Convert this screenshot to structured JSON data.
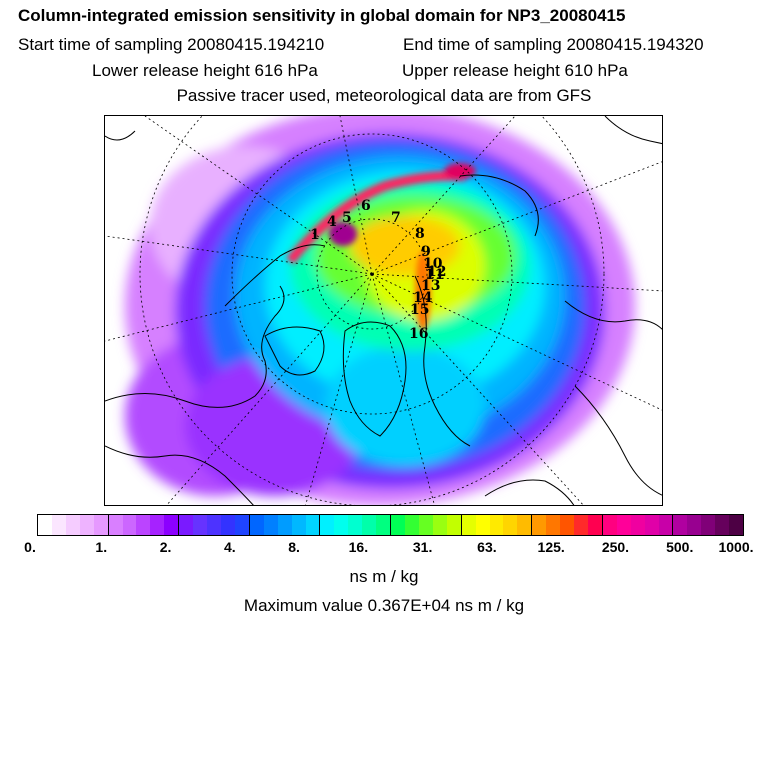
{
  "header": {
    "title": "Column-integrated emission sensitivity in global domain for NP3_20080415",
    "start_time": "Start time of sampling 20080415.194210",
    "end_time": "End time of sampling 20080415.194320",
    "lower_release": "Lower release height  616 hPa",
    "upper_release": "Upper release height  610 hPa",
    "tracer_note": "Passive tracer used, meteorological data are from GFS"
  },
  "colorbar": {
    "colors": [
      "#ffffff",
      "#fbe6ff",
      "#f5ccff",
      "#eeb3ff",
      "#e699ff",
      "#d97fff",
      "#cc66ff",
      "#bb44ff",
      "#a622ff",
      "#8c00ff",
      "#7a1aff",
      "#6633ff",
      "#4d33ff",
      "#3333ff",
      "#1f44ff",
      "#0066ff",
      "#0080ff",
      "#009cff",
      "#00b8ff",
      "#00d4ff",
      "#00f0ff",
      "#00ffee",
      "#00ffd0",
      "#00ffaa",
      "#00ff80",
      "#00ff55",
      "#33ff33",
      "#66ff22",
      "#99ff11",
      "#c2ff00",
      "#e5ff00",
      "#ffff00",
      "#ffea00",
      "#ffd500",
      "#ffbb00",
      "#ff9900",
      "#ff7700",
      "#ff5500",
      "#ff2a2a",
      "#ff0050",
      "#ff0080",
      "#ff0099",
      "#f000a0",
      "#e000a8",
      "#c800a8",
      "#b000a0",
      "#980090",
      "#800078",
      "#66005c",
      "#4d0044"
    ],
    "tick_labels": [
      "0.",
      "1.",
      "2.",
      "4.",
      "8.",
      "16.",
      "31.",
      "63.",
      "125.",
      "250.",
      "500.",
      "1000."
    ],
    "units": "ns m / kg",
    "max_value_text": "Maximum value  0.367E+04 ns m / kg"
  },
  "map": {
    "point_labels": [
      "1",
      "4",
      "5",
      "6",
      "7",
      "8",
      "9",
      "10",
      "11",
      "12",
      "13",
      "14",
      "15",
      "16"
    ]
  }
}
